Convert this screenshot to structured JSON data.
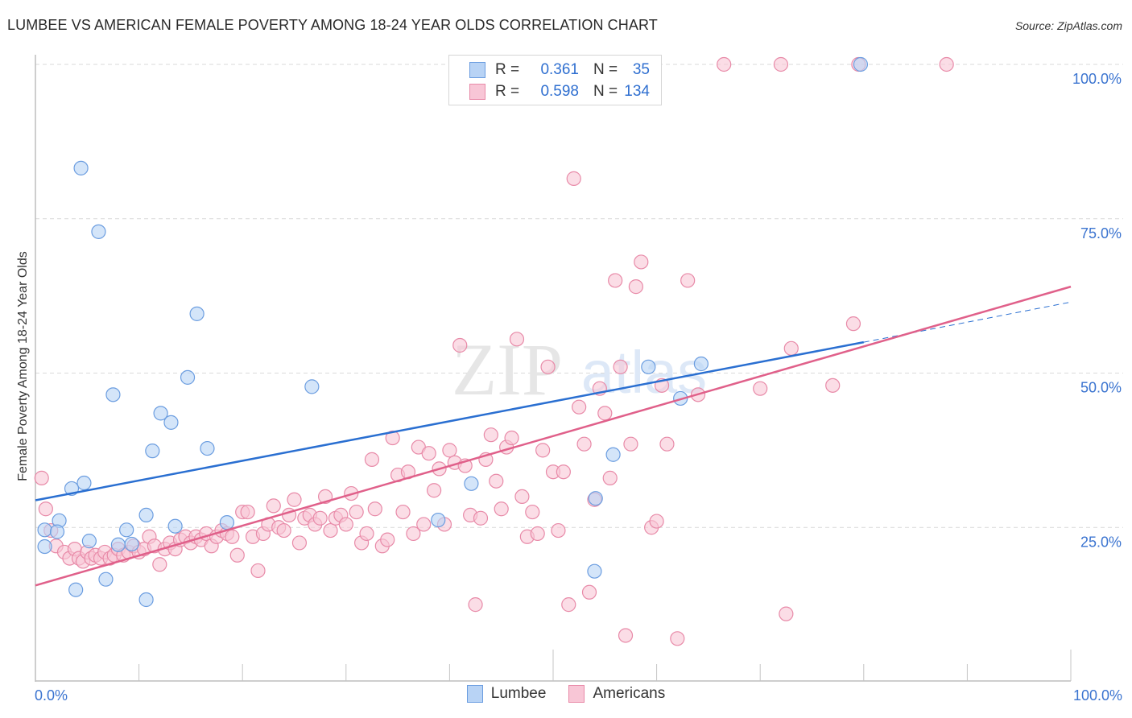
{
  "title": "LUMBEE VS AMERICAN FEMALE POVERTY AMONG 18-24 YEAR OLDS CORRELATION CHART",
  "source": "Source: ZipAtlas.com",
  "watermark": {
    "zip": "ZIP",
    "atlas": "atlas"
  },
  "colors": {
    "lumbee_fill": "#b8d3f5",
    "lumbee_stroke": "#6b9de0",
    "lumbee_line": "#2a6fd1",
    "americans_fill": "#f8c6d6",
    "americans_stroke": "#e88aa8",
    "americans_line": "#e0608a",
    "axis_label": "#3b74d0",
    "grid": "#d9d9d9"
  },
  "stats_legend": {
    "rows": [
      {
        "series": "Lumbee",
        "r_label": "R =",
        "r_value": "0.361",
        "n_label": "N =",
        "n_value": "35"
      },
      {
        "series": "Americans",
        "r_label": "R =",
        "r_value": "0.598",
        "n_label": "N =",
        "n_value": "134"
      }
    ]
  },
  "chart_data": {
    "type": "scatter",
    "title": "LUMBEE VS AMERICAN FEMALE POVERTY AMONG 18-24 YEAR OLDS CORRELATION CHART",
    "xlabel": "",
    "ylabel": "Female Poverty Among 18-24 Year Olds",
    "xlim": [
      0,
      100
    ],
    "ylim": [
      0,
      100
    ],
    "x_tick_labels": [
      {
        "value": 0,
        "label": "0.0%"
      },
      {
        "value": 100,
        "label": "100.0%"
      }
    ],
    "x_minor_ticks": [
      10,
      20,
      30,
      40,
      50,
      60,
      70,
      80,
      90,
      100
    ],
    "y_ticks": [
      {
        "value": 25,
        "label": "25.0%"
      },
      {
        "value": 50,
        "label": "50.0%"
      },
      {
        "value": 75,
        "label": "75.0%"
      },
      {
        "value": 100,
        "label": "100.0%"
      }
    ],
    "grid": "horizontal-dashed",
    "legend_position": "bottom-center",
    "legend": [
      "Lumbee",
      "Americans"
    ],
    "series": [
      {
        "name": "Lumbee",
        "r": 0.361,
        "n": 35,
        "trend": {
          "x0": 0,
          "y0": 29.4,
          "x1": 80,
          "y1": 55.0,
          "dashed_x1": 100,
          "dashed_y1": 61.5
        },
        "points": [
          [
            4.4,
            83.2
          ],
          [
            6.1,
            72.9
          ],
          [
            15.6,
            59.6
          ],
          [
            14.7,
            49.3
          ],
          [
            7.5,
            46.5
          ],
          [
            12.1,
            43.5
          ],
          [
            13.1,
            42.0
          ],
          [
            11.3,
            37.4
          ],
          [
            16.6,
            37.8
          ],
          [
            26.7,
            47.8
          ],
          [
            4.7,
            32.2
          ],
          [
            3.5,
            31.3
          ],
          [
            2.3,
            26.1
          ],
          [
            0.9,
            24.6
          ],
          [
            2.1,
            24.3
          ],
          [
            10.7,
            27.0
          ],
          [
            8.8,
            24.6
          ],
          [
            13.5,
            25.2
          ],
          [
            0.9,
            21.9
          ],
          [
            5.2,
            22.8
          ],
          [
            8.0,
            22.2
          ],
          [
            18.5,
            25.8
          ],
          [
            3.9,
            14.9
          ],
          [
            6.8,
            16.6
          ],
          [
            10.7,
            13.3
          ],
          [
            42.1,
            32.1
          ],
          [
            38.9,
            26.2
          ],
          [
            54.1,
            29.7
          ],
          [
            54.0,
            17.9
          ],
          [
            55.8,
            36.8
          ],
          [
            79.7,
            100.0
          ],
          [
            64.3,
            51.5
          ],
          [
            62.3,
            45.9
          ],
          [
            59.2,
            51.0
          ],
          [
            9.3,
            22.3
          ]
        ]
      },
      {
        "name": "Americans",
        "r": 0.598,
        "n": 134,
        "trend": {
          "x0": 0,
          "y0": 15.6,
          "x1": 100,
          "y1": 64.0
        },
        "points": [
          [
            0.6,
            33.0
          ],
          [
            1.0,
            28.0
          ],
          [
            1.5,
            24.5
          ],
          [
            2.0,
            22.0
          ],
          [
            2.8,
            21.0
          ],
          [
            3.3,
            20.0
          ],
          [
            3.8,
            21.5
          ],
          [
            4.2,
            20.0
          ],
          [
            4.6,
            19.5
          ],
          [
            5.0,
            21.0
          ],
          [
            5.4,
            20.0
          ],
          [
            5.8,
            20.5
          ],
          [
            6.3,
            20.0
          ],
          [
            6.7,
            21.0
          ],
          [
            7.2,
            20.0
          ],
          [
            7.6,
            20.5
          ],
          [
            8.0,
            21.5
          ],
          [
            8.5,
            20.5
          ],
          [
            9.0,
            21.0
          ],
          [
            9.5,
            22.0
          ],
          [
            10.0,
            21.0
          ],
          [
            10.5,
            21.5
          ],
          [
            11.0,
            23.5
          ],
          [
            11.5,
            22.0
          ],
          [
            12.0,
            19.0
          ],
          [
            12.5,
            21.5
          ],
          [
            13.0,
            22.5
          ],
          [
            13.5,
            21.5
          ],
          [
            14.0,
            23.0
          ],
          [
            14.5,
            23.5
          ],
          [
            15.0,
            22.5
          ],
          [
            15.5,
            23.5
          ],
          [
            16.0,
            23.0
          ],
          [
            16.5,
            24.0
          ],
          [
            17.0,
            22.0
          ],
          [
            17.5,
            23.5
          ],
          [
            18.0,
            24.5
          ],
          [
            18.5,
            24.0
          ],
          [
            19.0,
            23.5
          ],
          [
            19.5,
            20.5
          ],
          [
            20.0,
            27.5
          ],
          [
            20.5,
            27.5
          ],
          [
            21.0,
            23.5
          ],
          [
            21.5,
            18.0
          ],
          [
            22.0,
            24.0
          ],
          [
            22.5,
            25.5
          ],
          [
            23.0,
            28.5
          ],
          [
            23.5,
            25.0
          ],
          [
            24.0,
            24.5
          ],
          [
            24.5,
            27.0
          ],
          [
            25.0,
            29.5
          ],
          [
            25.5,
            22.5
          ],
          [
            26.0,
            26.5
          ],
          [
            26.5,
            27.0
          ],
          [
            27.0,
            25.5
          ],
          [
            27.5,
            26.5
          ],
          [
            28.0,
            30.0
          ],
          [
            28.5,
            24.5
          ],
          [
            29.0,
            26.5
          ],
          [
            29.5,
            27.0
          ],
          [
            30.0,
            25.5
          ],
          [
            30.5,
            30.5
          ],
          [
            31.0,
            27.5
          ],
          [
            31.5,
            22.5
          ],
          [
            32.0,
            24.0
          ],
          [
            32.5,
            36.0
          ],
          [
            32.8,
            28.0
          ],
          [
            33.5,
            22.0
          ],
          [
            34.0,
            23.0
          ],
          [
            34.5,
            39.5
          ],
          [
            35.0,
            33.5
          ],
          [
            35.5,
            27.5
          ],
          [
            36.0,
            34.0
          ],
          [
            36.5,
            24.0
          ],
          [
            37.0,
            38.0
          ],
          [
            37.5,
            25.5
          ],
          [
            38.0,
            37.0
          ],
          [
            38.5,
            31.0
          ],
          [
            39.0,
            34.5
          ],
          [
            39.5,
            25.5
          ],
          [
            40.0,
            37.5
          ],
          [
            40.5,
            35.5
          ],
          [
            41.0,
            54.5
          ],
          [
            41.5,
            35.0
          ],
          [
            42.0,
            27.0
          ],
          [
            42.5,
            12.5
          ],
          [
            43.0,
            26.5
          ],
          [
            43.5,
            36.0
          ],
          [
            44.0,
            40.0
          ],
          [
            44.5,
            32.5
          ],
          [
            45.0,
            28.0
          ],
          [
            45.5,
            38.0
          ],
          [
            46.0,
            39.5
          ],
          [
            46.5,
            55.5
          ],
          [
            47.0,
            30.0
          ],
          [
            47.5,
            23.5
          ],
          [
            48.0,
            27.5
          ],
          [
            48.5,
            24.0
          ],
          [
            49.0,
            37.5
          ],
          [
            49.5,
            51.0
          ],
          [
            50.0,
            34.0
          ],
          [
            50.5,
            24.5
          ],
          [
            51.0,
            34.0
          ],
          [
            51.5,
            12.5
          ],
          [
            52.0,
            81.5
          ],
          [
            52.5,
            44.5
          ],
          [
            53.0,
            38.5
          ],
          [
            53.5,
            14.5
          ],
          [
            54.0,
            29.5
          ],
          [
            54.5,
            47.5
          ],
          [
            55.0,
            43.5
          ],
          [
            55.5,
            33.0
          ],
          [
            56.0,
            65.0
          ],
          [
            56.5,
            51.0
          ],
          [
            57.0,
            7.5
          ],
          [
            57.5,
            38.5
          ],
          [
            58.0,
            64.0
          ],
          [
            58.5,
            68.0
          ],
          [
            59.0,
            100.0
          ],
          [
            59.5,
            25.0
          ],
          [
            60.0,
            26.0
          ],
          [
            60.5,
            48.0
          ],
          [
            61.0,
            38.5
          ],
          [
            62.0,
            7.0
          ],
          [
            63.0,
            65.0
          ],
          [
            64.0,
            46.5
          ],
          [
            66.5,
            100.0
          ],
          [
            70.0,
            47.5
          ],
          [
            72.0,
            100.0
          ],
          [
            72.5,
            11.0
          ],
          [
            73.0,
            54.0
          ],
          [
            77.0,
            48.0
          ],
          [
            79.0,
            58.0
          ],
          [
            79.5,
            100.0
          ],
          [
            88.0,
            100.0
          ]
        ]
      }
    ]
  }
}
